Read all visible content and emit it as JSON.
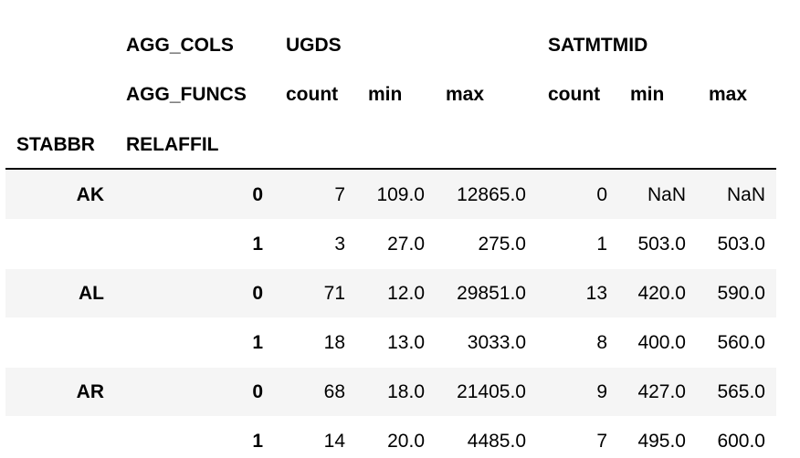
{
  "header": {
    "row1": {
      "level_name": "AGG_COLS",
      "col_ugds": "UGDS",
      "col_satmtmid": "SATMTMID"
    },
    "row2": {
      "level_name": "AGG_FUNCS",
      "ugds_count": "count",
      "ugds_min": "min",
      "ugds_max": "max",
      "sat_count": "count",
      "sat_min": "min",
      "sat_max": "max"
    },
    "row3": {
      "index_stabbr": "STABBR",
      "index_relaffil": "RELAFFIL"
    }
  },
  "rows": [
    {
      "stabbr": "AK",
      "relaffil": "0",
      "ugds_count": "7",
      "ugds_min": "109.0",
      "ugds_max": "12865.0",
      "sat_count": "0",
      "sat_min": "NaN",
      "sat_max": "NaN"
    },
    {
      "stabbr": "",
      "relaffil": "1",
      "ugds_count": "3",
      "ugds_min": "27.0",
      "ugds_max": "275.0",
      "sat_count": "1",
      "sat_min": "503.0",
      "sat_max": "503.0"
    },
    {
      "stabbr": "AL",
      "relaffil": "0",
      "ugds_count": "71",
      "ugds_min": "12.0",
      "ugds_max": "29851.0",
      "sat_count": "13",
      "sat_min": "420.0",
      "sat_max": "590.0"
    },
    {
      "stabbr": "",
      "relaffil": "1",
      "ugds_count": "18",
      "ugds_min": "13.0",
      "ugds_max": "3033.0",
      "sat_count": "8",
      "sat_min": "400.0",
      "sat_max": "560.0"
    },
    {
      "stabbr": "AR",
      "relaffil": "0",
      "ugds_count": "68",
      "ugds_min": "18.0",
      "ugds_max": "21405.0",
      "sat_count": "9",
      "sat_min": "427.0",
      "sat_max": "565.0"
    },
    {
      "stabbr": "",
      "relaffil": "1",
      "ugds_count": "14",
      "ugds_min": "20.0",
      "ugds_max": "4485.0",
      "sat_count": "7",
      "sat_min": "495.0",
      "sat_max": "600.0"
    }
  ]
}
